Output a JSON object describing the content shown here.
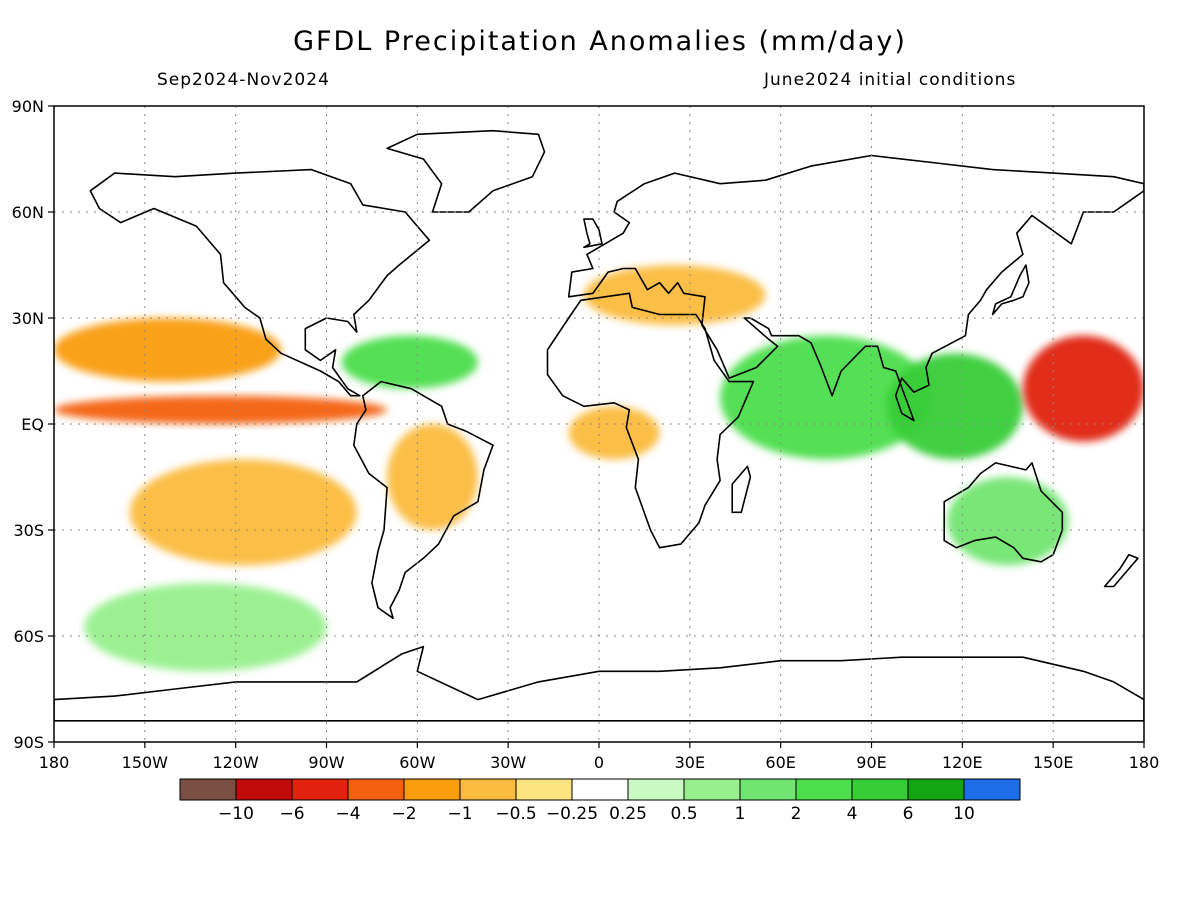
{
  "title": "GFDL Precipitation Anomalies (mm/day)",
  "period": "Sep2024-Nov2024",
  "init": "June2024 initial conditions",
  "axes": {
    "lat_labels": [
      "90N",
      "60N",
      "30N",
      "EQ",
      "30S",
      "60S",
      "90S"
    ],
    "lat_values": [
      90,
      60,
      30,
      0,
      -30,
      -60,
      -90
    ],
    "lon_labels": [
      "180",
      "150W",
      "120W",
      "90W",
      "60W",
      "30W",
      "0",
      "30E",
      "60E",
      "90E",
      "120E",
      "150E",
      "180"
    ],
    "lon_values": [
      -180,
      -150,
      -120,
      -90,
      -60,
      -30,
      0,
      30,
      60,
      90,
      120,
      150,
      180
    ]
  },
  "colorbar": {
    "labels": [
      "−10",
      "−6",
      "−4",
      "−2",
      "−1",
      "−0.5",
      "−0.25",
      "0.25",
      "0.5",
      "1",
      "2",
      "4",
      "6",
      "10"
    ],
    "colors": [
      "#7b4f44",
      "#c10a0a",
      "#e0220e",
      "#f46010",
      "#f99c0e",
      "#fbbb3e",
      "#fde480",
      "#ffffff",
      "#c8fac2",
      "#97f08d",
      "#72e571",
      "#4cde4c",
      "#37cd37",
      "#14a514",
      "#1e6ee8"
    ]
  },
  "regions": [
    {
      "name": "equatorial-pacific-dry",
      "lon": [
        -180,
        -70
      ],
      "lat": [
        0,
        8
      ],
      "category": -4
    },
    {
      "name": "north-pacific-subtropical-dry",
      "lon": [
        -180,
        -105
      ],
      "lat": [
        12,
        30
      ],
      "category": -2
    },
    {
      "name": "south-pacific-spcz-dry",
      "lon": [
        -155,
        -80
      ],
      "lat": [
        -40,
        -10
      ],
      "category": -1
    },
    {
      "name": "amazon-dry",
      "lon": [
        -70,
        -40
      ],
      "lat": [
        -30,
        0
      ],
      "category": -1
    },
    {
      "name": "caribbean-wet",
      "lon": [
        -85,
        -40
      ],
      "lat": [
        10,
        25
      ],
      "category": 2
    },
    {
      "name": "africa-equatorial-dry",
      "lon": [
        -10,
        20
      ],
      "lat": [
        -10,
        5
      ],
      "category": -1
    },
    {
      "name": "indian-ocean-wet",
      "lon": [
        40,
        110
      ],
      "lat": [
        -10,
        25
      ],
      "category": 2
    },
    {
      "name": "maritime-continent-wet",
      "lon": [
        95,
        140
      ],
      "lat": [
        -10,
        20
      ],
      "category": 4
    },
    {
      "name": "west-pacific-dry",
      "lon": [
        140,
        180
      ],
      "lat": [
        -5,
        25
      ],
      "category": -6
    },
    {
      "name": "australia-wet",
      "lon": [
        115,
        155
      ],
      "lat": [
        -40,
        -15
      ],
      "category": 1
    },
    {
      "name": "southern-ocean-wet",
      "lon": [
        -170,
        -90
      ],
      "lat": [
        -70,
        -45
      ],
      "category": 0.5
    },
    {
      "name": "mediterranean-dry",
      "lon": [
        -5,
        55
      ],
      "lat": [
        28,
        45
      ],
      "category": -1
    }
  ]
}
